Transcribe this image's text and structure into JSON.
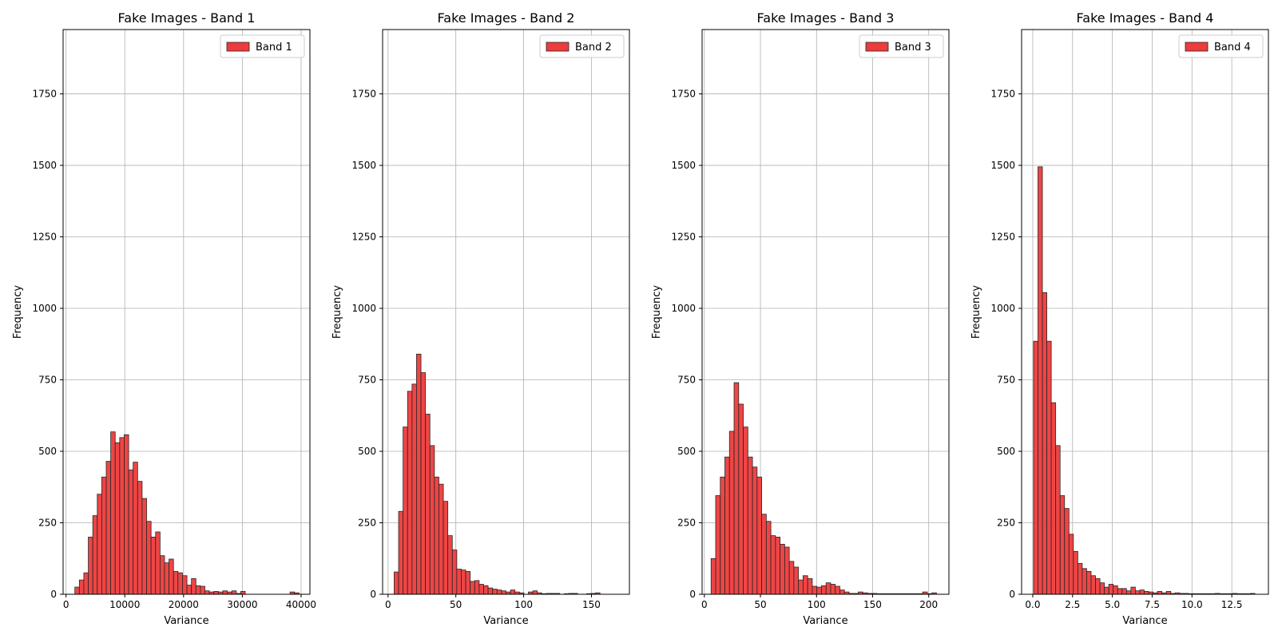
{
  "chart_data": [
    {
      "type": "bar",
      "title": "Fake Images - Band 1",
      "xlabel": "Variance",
      "ylabel": "Frequency",
      "xlim": [
        -500,
        41500
      ],
      "ylim": [
        0,
        1975
      ],
      "xticks": [
        0,
        10000,
        20000,
        30000,
        40000
      ],
      "xtick_labels": [
        "0",
        "10000",
        "20000",
        "30000",
        "40000"
      ],
      "yticks": [
        0,
        250,
        500,
        750,
        1000,
        1250,
        1500,
        1750
      ],
      "grid": true,
      "legend": "top-right",
      "series": [
        {
          "name": "Band 1",
          "color": "#ee3b3b"
        }
      ],
      "bin_start": 1500,
      "bin_width": 763,
      "values": [
        25,
        50,
        75,
        200,
        275,
        350,
        410,
        465,
        568,
        530,
        548,
        558,
        435,
        462,
        395,
        335,
        255,
        200,
        218,
        135,
        110,
        123,
        80,
        75,
        65,
        32,
        55,
        30,
        28,
        12,
        8,
        10,
        8,
        12,
        8,
        12,
        3,
        10,
        0,
        0,
        0,
        0,
        0,
        0,
        0,
        0,
        0,
        0,
        8,
        5
      ]
    },
    {
      "type": "bar",
      "title": "Fake Images - Band 2",
      "xlabel": "Variance",
      "ylabel": "Frequency",
      "xlim": [
        -4,
        178
      ],
      "ylim": [
        0,
        1975
      ],
      "xticks": [
        0,
        50,
        100,
        150
      ],
      "xtick_labels": [
        "0",
        "50",
        "100",
        "150"
      ],
      "yticks": [
        0,
        250,
        500,
        750,
        1000,
        1250,
        1500,
        1750
      ],
      "grid": true,
      "legend": "top-right",
      "series": [
        {
          "name": "Band 2",
          "color": "#ee3b3b"
        }
      ],
      "bin_start": 4.5,
      "bin_width": 3.3,
      "values": [
        78,
        290,
        585,
        710,
        735,
        840,
        775,
        630,
        520,
        410,
        385,
        325,
        205,
        155,
        88,
        85,
        80,
        45,
        48,
        35,
        30,
        22,
        18,
        15,
        12,
        8,
        15,
        8,
        5,
        0,
        8,
        12,
        5,
        2,
        3,
        3,
        3,
        0,
        2,
        3,
        3,
        0,
        0,
        2,
        3,
        5
      ]
    },
    {
      "type": "bar",
      "title": "Fake Images - Band 3",
      "xlabel": "Variance",
      "ylabel": "Frequency",
      "xlim": [
        -2,
        218
      ],
      "ylim": [
        0,
        1975
      ],
      "xticks": [
        0,
        50,
        100,
        150,
        200
      ],
      "xtick_labels": [
        "0",
        "50",
        "100",
        "150",
        "200"
      ],
      "yticks": [
        0,
        250,
        500,
        750,
        1000,
        1250,
        1500,
        1750
      ],
      "grid": true,
      "legend": "top-right",
      "series": [
        {
          "name": "Band 3",
          "color": "#ee3b3b"
        }
      ],
      "bin_start": 6,
      "bin_width": 4.1,
      "values": [
        125,
        345,
        410,
        480,
        570,
        740,
        665,
        585,
        480,
        445,
        410,
        280,
        255,
        205,
        200,
        175,
        165,
        115,
        95,
        50,
        65,
        55,
        28,
        25,
        30,
        40,
        35,
        28,
        15,
        8,
        3,
        3,
        8,
        5,
        3,
        3,
        2,
        2,
        2,
        2,
        2,
        2,
        2,
        2,
        2,
        2,
        8,
        2,
        5
      ]
    },
    {
      "type": "bar",
      "title": "Fake Images - Band 4",
      "xlabel": "Variance",
      "ylabel": "Frequency",
      "xlim": [
        -0.7,
        14.8
      ],
      "ylim": [
        0,
        1975
      ],
      "xticks": [
        0,
        2.5,
        5,
        7.5,
        10,
        12.5
      ],
      "xtick_labels": [
        "0.0",
        "2.5",
        "5.0",
        "7.5",
        "10.0",
        "12.5"
      ],
      "yticks": [
        0,
        250,
        500,
        750,
        1000,
        1250,
        1500,
        1750
      ],
      "grid": true,
      "legend": "top-right",
      "series": [
        {
          "name": "Band 4",
          "color": "#ee3b3b"
        }
      ],
      "bin_start": 0.05,
      "bin_width": 0.278,
      "values": [
        885,
        1495,
        1055,
        885,
        670,
        520,
        345,
        300,
        210,
        150,
        108,
        90,
        80,
        65,
        55,
        40,
        25,
        35,
        30,
        20,
        20,
        12,
        25,
        12,
        15,
        10,
        8,
        5,
        10,
        5,
        10,
        3,
        5,
        3,
        3,
        2,
        2,
        2,
        2,
        2,
        2,
        3,
        2,
        2,
        2,
        3,
        2,
        2,
        2,
        3
      ]
    }
  ]
}
